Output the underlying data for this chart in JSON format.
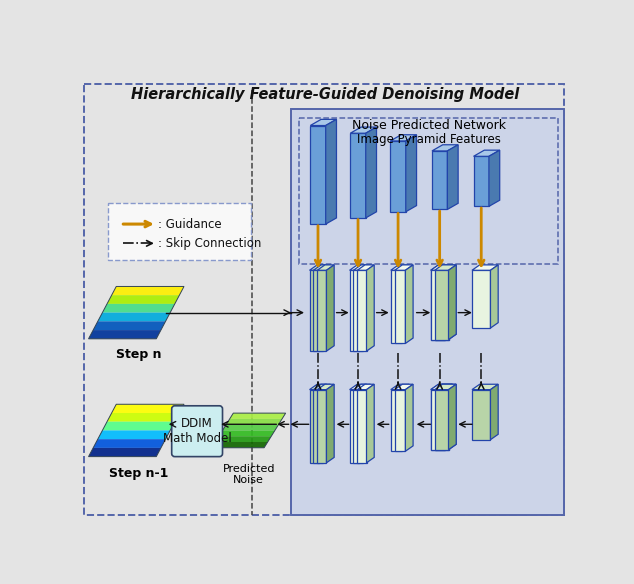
{
  "title": "Hierarchically Feature-Guided Denoising Model",
  "outer_bg": "#e4e4e4",
  "inner_bg": "#ccd4e8",
  "legend_bg": "#f8f8f8",
  "blue_face": "#6a9fd8",
  "blue_top": "#a8c8e8",
  "blue_side": "#4a7ab0",
  "gface1": "#b8d4a8",
  "gtop1": "#d4e8c8",
  "gside1": "#80aa70",
  "wface": "#e8f4e0",
  "wtop": "#f2f8ee",
  "wside": "#a8c898",
  "ddim_bg": "#cceef0",
  "guidance_color": "#cc8800",
  "skip_color": "#111111",
  "arrow_color": "#111111",
  "text_color": "#111111",
  "border_color": "#5566aa",
  "noise_label": "Noise Predicted Network",
  "pyramid_label": "Image Pyramid Features",
  "step_n_label": "Step n",
  "step_n1_label": "Step n-1",
  "predicted_noise_label": "Predicted\nNoise",
  "ddim_label": "DDIM\nMath Model",
  "guidance_legend": ": Guidance",
  "skip_legend": ": Skip Connection"
}
